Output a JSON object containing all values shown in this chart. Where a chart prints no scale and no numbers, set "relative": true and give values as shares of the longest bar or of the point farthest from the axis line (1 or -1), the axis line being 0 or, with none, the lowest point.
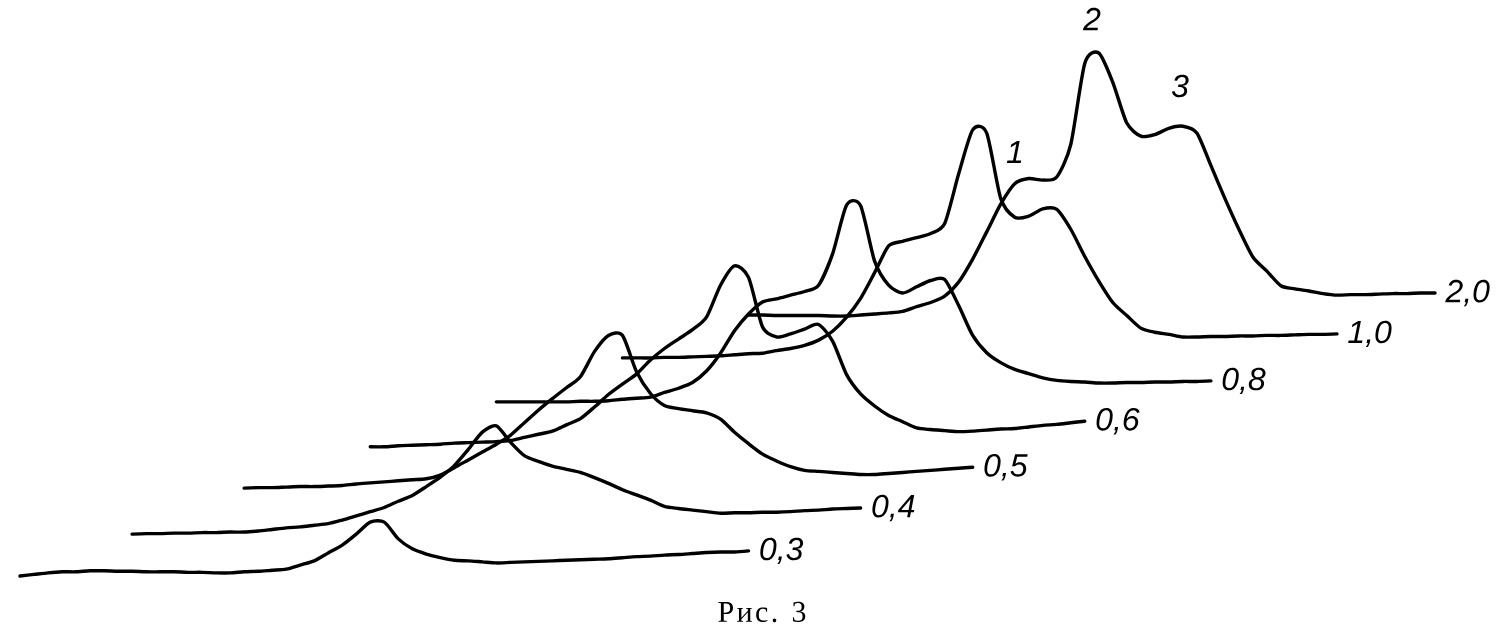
{
  "chart_data": {
    "type": "line",
    "relative": true,
    "categories": [
      null,
      null,
      null,
      null,
      null,
      null,
      null,
      null,
      null,
      null,
      null,
      null,
      null,
      null,
      null,
      null,
      null,
      null,
      null,
      null,
      null,
      null,
      null,
      null,
      null,
      null,
      null,
      null,
      null,
      null,
      null,
      null,
      null,
      null,
      null,
      null,
      null,
      null,
      null,
      null,
      null,
      null,
      null,
      null,
      null,
      null,
      null,
      null,
      null,
      null,
      null,
      null,
      null,
      null,
      null,
      null,
      null,
      null,
      null,
      null,
      null,
      null,
      null,
      null,
      null,
      null,
      null,
      null,
      null,
      null,
      null,
      null,
      null,
      null,
      null,
      null,
      null,
      null,
      null,
      null,
      null,
      null,
      null,
      null,
      null,
      null,
      null,
      null,
      null,
      null,
      null,
      null,
      null,
      null,
      null,
      null,
      null,
      null,
      null,
      null,
      null,
      null
    ],
    "series": [
      {
        "name": "0,3",
        "color": "#000000",
        "values": [
          0,
          0.003,
          0.006,
          0.008,
          0.008,
          0.01,
          0.01,
          0.009,
          0.009,
          0.008,
          0.008,
          0.008,
          0.007,
          0.007,
          0.006,
          0.006,
          0.008,
          0.009,
          0.011,
          0.013,
          0.021,
          0.029,
          0.044,
          0.059,
          0.08,
          0.103,
          0.103,
          0.071,
          0.052,
          0.042,
          0.035,
          0.03,
          0.029,
          0.027,
          0.025,
          0.026,
          0.027,
          0.028,
          0.029,
          0.03,
          0.031,
          0.032,
          0.033,
          0.035,
          0.037,
          0.038,
          0.04,
          0.041,
          0.043,
          0.045,
          0.046,
          0.046,
          0.048,
          null,
          null,
          null,
          null,
          null,
          null,
          null,
          null,
          null,
          null,
          null,
          null,
          null,
          null,
          null,
          null,
          null,
          null,
          null,
          null,
          null,
          null,
          null,
          null,
          null,
          null,
          null,
          null,
          null,
          null,
          null,
          null,
          null,
          null,
          null,
          null,
          null,
          null,
          null,
          null,
          null,
          null,
          null,
          null,
          null,
          null,
          null,
          null,
          null
        ]
      },
      {
        "name": "0,4",
        "color": "#000000",
        "values": [
          null,
          null,
          null,
          null,
          null,
          null,
          null,
          null,
          0.08,
          0.081,
          0.081,
          0.082,
          0.082,
          0.083,
          0.083,
          0.084,
          0.084,
          0.086,
          0.089,
          0.092,
          0.094,
          0.097,
          0.1,
          0.107,
          0.115,
          0.123,
          0.131,
          0.143,
          0.154,
          0.171,
          0.189,
          0.211,
          0.242,
          0.275,
          0.287,
          0.256,
          0.23,
          0.219,
          0.21,
          0.204,
          0.198,
          0.188,
          0.177,
          0.165,
          0.155,
          0.145,
          0.133,
          0.129,
          0.126,
          0.123,
          0.12,
          0.121,
          0.121,
          0.122,
          0.122,
          0.123,
          0.125,
          0.126,
          0.128,
          0.129,
          0.13,
          null,
          null,
          null,
          null,
          null,
          null,
          null,
          null,
          null,
          null,
          null,
          null,
          null,
          null,
          null,
          null,
          null,
          null,
          null,
          null,
          null,
          null,
          null,
          null,
          null,
          null,
          null,
          null,
          null,
          null,
          null,
          null,
          null,
          null,
          null,
          null,
          null,
          null,
          null,
          null,
          null
        ]
      },
      {
        "name": "0,5",
        "color": "#000000",
        "values": [
          null,
          null,
          null,
          null,
          null,
          null,
          null,
          null,
          null,
          null,
          null,
          null,
          null,
          null,
          null,
          null,
          0.168,
          0.169,
          0.169,
          0.17,
          0.171,
          0.171,
          0.172,
          0.173,
          0.176,
          0.178,
          0.18,
          0.182,
          0.184,
          0.186,
          0.193,
          0.207,
          0.222,
          0.237,
          0.252,
          0.269,
          0.293,
          0.317,
          0.339,
          0.36,
          0.381,
          0.429,
          0.46,
          0.46,
          0.391,
          0.349,
          0.326,
          0.32,
          0.316,
          0.312,
          0.3,
          0.275,
          0.253,
          0.233,
          0.22,
          0.209,
          0.202,
          0.2,
          0.198,
          0.196,
          0.194,
          0.194,
          0.196,
          0.198,
          0.2,
          0.202,
          0.204,
          0.206,
          0.208,
          null,
          null,
          null,
          null,
          null,
          null,
          null,
          null,
          null,
          null,
          null,
          null,
          null,
          null,
          null,
          null,
          null,
          null,
          null,
          null,
          null,
          null,
          null,
          null,
          null,
          null,
          null,
          null,
          null,
          null,
          null,
          null,
          null
        ]
      },
      {
        "name": "0,6",
        "color": "#000000",
        "values": [
          null,
          null,
          null,
          null,
          null,
          null,
          null,
          null,
          null,
          null,
          null,
          null,
          null,
          null,
          null,
          null,
          null,
          null,
          null,
          null,
          null,
          null,
          null,
          null,
          null,
          0.247,
          0.247,
          0.249,
          0.25,
          0.251,
          0.252,
          0.254,
          0.255,
          0.256,
          0.257,
          0.259,
          0.265,
          0.271,
          0.277,
          0.289,
          0.301,
          0.323,
          0.347,
          0.367,
          0.386,
          0.413,
          0.435,
          0.453,
          0.471,
          0.495,
          0.556,
          0.593,
          0.571,
          0.476,
          0.457,
          0.463,
          0.472,
          0.481,
          0.449,
          0.385,
          0.348,
          0.325,
          0.307,
          0.295,
          0.283,
          0.28,
          0.278,
          0.276,
          0.277,
          0.279,
          0.281,
          0.282,
          0.285,
          0.288,
          0.29,
          0.293,
          0.296,
          null,
          null,
          null,
          null,
          null,
          null,
          null,
          null,
          null,
          null,
          null,
          null,
          null,
          null,
          null,
          null,
          null,
          null,
          null,
          null,
          null,
          null,
          null,
          null,
          null
        ]
      },
      {
        "name": "0,8",
        "color": "#000000",
        "values": [
          null,
          null,
          null,
          null,
          null,
          null,
          null,
          null,
          null,
          null,
          null,
          null,
          null,
          null,
          null,
          null,
          null,
          null,
          null,
          null,
          null,
          null,
          null,
          null,
          null,
          null,
          null,
          null,
          null,
          null,
          null,
          null,
          null,
          null,
          0.333,
          0.333,
          0.333,
          0.333,
          0.333,
          0.333,
          0.334,
          0.334,
          0.335,
          0.338,
          0.34,
          0.342,
          0.351,
          0.359,
          0.37,
          0.392,
          0.426,
          0.469,
          0.501,
          0.524,
          0.53,
          0.537,
          0.544,
          0.556,
          0.616,
          0.709,
          0.708,
          0.602,
          0.556,
          0.541,
          0.553,
          0.565,
          0.567,
          0.517,
          0.46,
          0.427,
          0.408,
          0.395,
          0.387,
          0.379,
          0.374,
          0.372,
          0.371,
          0.369,
          0.369,
          0.37,
          0.37,
          0.371,
          0.371,
          0.372,
          0.372,
          0.373,
          null,
          null,
          null,
          null,
          null,
          null,
          null,
          null,
          null,
          null,
          null,
          null,
          null,
          null,
          null,
          null
        ]
      },
      {
        "name": "1,0",
        "color": "#000000",
        "values": [
          null,
          null,
          null,
          null,
          null,
          null,
          null,
          null,
          null,
          null,
          null,
          null,
          null,
          null,
          null,
          null,
          null,
          null,
          null,
          null,
          null,
          null,
          null,
          null,
          null,
          null,
          null,
          null,
          null,
          null,
          null,
          null,
          null,
          null,
          null,
          null,
          null,
          null,
          null,
          null,
          null,
          null,
          null,
          0.417,
          0.417,
          0.417,
          0.418,
          0.418,
          0.419,
          0.42,
          0.421,
          0.423,
          0.425,
          0.426,
          0.431,
          0.435,
          0.441,
          0.451,
          0.468,
          0.495,
          0.531,
          0.58,
          0.631,
          0.64,
          0.647,
          0.655,
          0.674,
          0.769,
          0.853,
          0.847,
          0.722,
          0.686,
          0.688,
          0.702,
          0.701,
          0.663,
          0.611,
          0.564,
          0.523,
          0.498,
          0.474,
          0.466,
          0.462,
          0.457,
          0.457,
          0.458,
          0.458,
          0.459,
          0.459,
          0.46,
          0.46,
          0.461,
          0.462,
          0.462,
          0.463,
          null,
          null,
          null,
          null,
          null,
          null,
          null
        ]
      },
      {
        "name": "2,0",
        "color": "#000000",
        "values": [
          null,
          null,
          null,
          null,
          null,
          null,
          null,
          null,
          null,
          null,
          null,
          null,
          null,
          null,
          null,
          null,
          null,
          null,
          null,
          null,
          null,
          null,
          null,
          null,
          null,
          null,
          null,
          null,
          null,
          null,
          null,
          null,
          null,
          null,
          null,
          null,
          null,
          null,
          null,
          null,
          null,
          null,
          null,
          null,
          null,
          null,
          null,
          null,
          null,
          null,
          null,
          null,
          0.499,
          0.499,
          0.498,
          0.498,
          0.498,
          0.498,
          0.497,
          0.497,
          0.499,
          0.501,
          0.503,
          0.506,
          0.515,
          0.523,
          0.535,
          0.562,
          0.606,
          0.658,
          0.711,
          0.75,
          0.76,
          0.757,
          0.763,
          0.825,
          0.98,
          1.0,
          0.944,
          0.866,
          0.841,
          0.844,
          0.856,
          0.86,
          0.847,
          0.785,
          0.722,
          0.663,
          0.61,
          0.583,
          0.555,
          0.549,
          0.545,
          0.54,
          0.537,
          0.538,
          0.538,
          0.539,
          0.54,
          0.54,
          0.541,
          0.541
        ]
      }
    ],
    "annotations": [
      "1",
      "2",
      "3",
      "Рис. 3"
    ]
  }
}
